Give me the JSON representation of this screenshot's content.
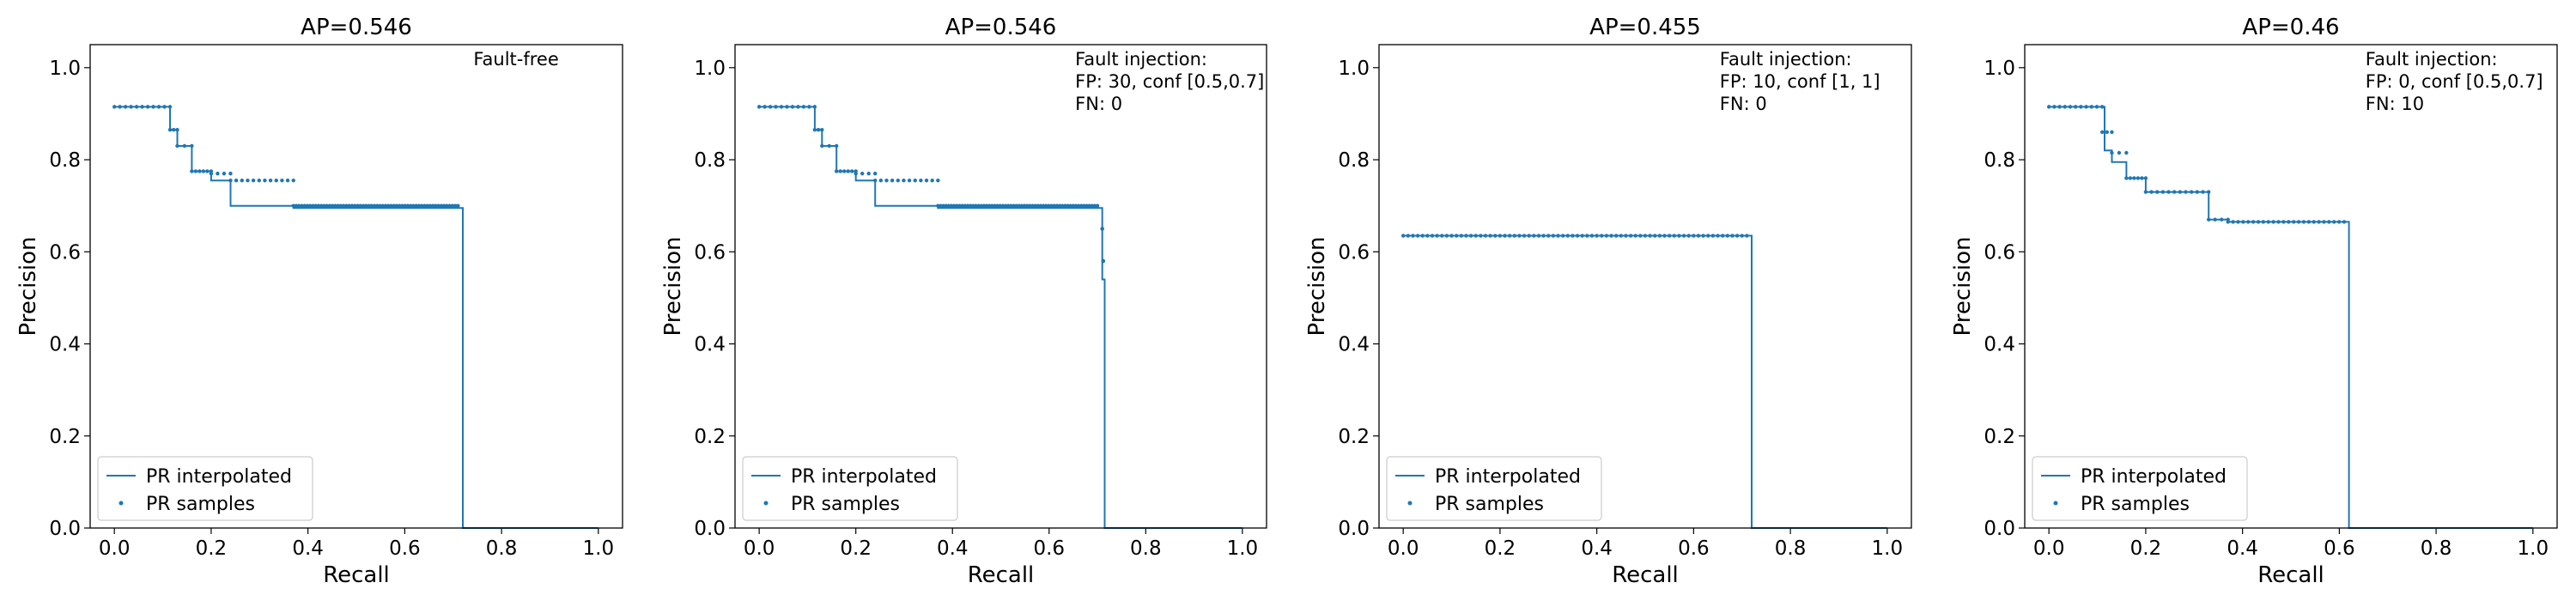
{
  "colors": {
    "series": "#1f77b4",
    "axes": "#000000",
    "legend_border": "#cccccc"
  },
  "chart_data": [
    {
      "type": "line",
      "title": "AP=0.546",
      "xlabel": "Recall",
      "ylabel": "Precision",
      "xlim": [
        -0.05,
        1.05
      ],
      "ylim": [
        0,
        1.05
      ],
      "xticks": [
        "0.0",
        "0.2",
        "0.4",
        "0.6",
        "0.8",
        "1.0"
      ],
      "yticks": [
        "0.0",
        "0.2",
        "0.4",
        "0.6",
        "0.8",
        "1.0"
      ],
      "grid": false,
      "legend_position": "lower-left",
      "annotation": [
        "Fault-free"
      ],
      "series": [
        {
          "name": "PR interpolated",
          "kind": "line",
          "x": [
            0.0,
            0.115,
            0.115,
            0.13,
            0.13,
            0.16,
            0.16,
            0.2,
            0.2,
            0.24,
            0.24,
            0.37,
            0.37,
            0.72,
            0.72,
            1.0
          ],
          "y": [
            0.915,
            0.915,
            0.865,
            0.865,
            0.83,
            0.83,
            0.775,
            0.775,
            0.755,
            0.755,
            0.7,
            0.7,
            0.695,
            0.695,
            0.0,
            0.0
          ]
        },
        {
          "name": "PR samples",
          "kind": "scatter",
          "segments": [
            [
              0.0,
              0.115,
              0.915,
              11
            ],
            [
              0.115,
              0.13,
              0.865,
              3
            ],
            [
              0.13,
              0.16,
              0.83,
              3
            ],
            [
              0.16,
              0.2,
              0.775,
              6
            ],
            [
              0.2,
              0.24,
              0.77,
              4
            ],
            [
              0.24,
              0.37,
              0.755,
              12
            ],
            [
              0.37,
              0.71,
              0.7,
              60
            ]
          ]
        }
      ]
    },
    {
      "type": "line",
      "title": "AP=0.546",
      "xlabel": "Recall",
      "ylabel": "Precision",
      "xlim": [
        -0.05,
        1.05
      ],
      "ylim": [
        0,
        1.05
      ],
      "xticks": [
        "0.0",
        "0.2",
        "0.4",
        "0.6",
        "0.8",
        "1.0"
      ],
      "yticks": [
        "0.0",
        "0.2",
        "0.4",
        "0.6",
        "0.8",
        "1.0"
      ],
      "grid": false,
      "legend_position": "lower-left",
      "annotation": [
        "Fault injection:",
        "FP: 30, conf [0.5,0.7]",
        "FN: 0"
      ],
      "series": [
        {
          "name": "PR interpolated",
          "kind": "line",
          "x": [
            0.0,
            0.115,
            0.115,
            0.13,
            0.13,
            0.16,
            0.16,
            0.2,
            0.2,
            0.24,
            0.24,
            0.37,
            0.37,
            0.71,
            0.71,
            0.715,
            0.715,
            1.0
          ],
          "y": [
            0.915,
            0.915,
            0.865,
            0.865,
            0.83,
            0.83,
            0.775,
            0.775,
            0.755,
            0.755,
            0.7,
            0.7,
            0.695,
            0.695,
            0.54,
            0.54,
            0.0,
            0.0
          ]
        },
        {
          "name": "PR samples",
          "kind": "scatter",
          "segments": [
            [
              0.0,
              0.115,
              0.915,
              11
            ],
            [
              0.115,
              0.13,
              0.865,
              3
            ],
            [
              0.13,
              0.16,
              0.83,
              3
            ],
            [
              0.16,
              0.2,
              0.775,
              6
            ],
            [
              0.2,
              0.24,
              0.77,
              4
            ],
            [
              0.24,
              0.37,
              0.755,
              12
            ],
            [
              0.37,
              0.7,
              0.7,
              60
            ],
            [
              0.71,
              0.71,
              0.65,
              3
            ],
            [
              0.712,
              0.712,
              0.58,
              3
            ]
          ]
        }
      ]
    },
    {
      "type": "line",
      "title": "AP=0.455",
      "xlabel": "Recall",
      "ylabel": "Precision",
      "xlim": [
        -0.05,
        1.05
      ],
      "ylim": [
        0,
        1.05
      ],
      "xticks": [
        "0.0",
        "0.2",
        "0.4",
        "0.6",
        "0.8",
        "1.0"
      ],
      "yticks": [
        "0.0",
        "0.2",
        "0.4",
        "0.6",
        "0.8",
        "1.0"
      ],
      "grid": false,
      "legend_position": "lower-left",
      "annotation": [
        "Fault injection:",
        "FP: 10, conf [1, 1]",
        "FN: 0"
      ],
      "series": [
        {
          "name": "PR interpolated",
          "kind": "line",
          "x": [
            0.0,
            0.72,
            0.72,
            1.0
          ],
          "y": [
            0.635,
            0.635,
            0.0,
            0.0
          ]
        },
        {
          "name": "PR samples",
          "kind": "scatter",
          "segments": [
            [
              0.0,
              0.71,
              0.635,
              72
            ]
          ]
        }
      ]
    },
    {
      "type": "line",
      "title": "AP=0.46",
      "xlabel": "Recall",
      "ylabel": "Precision",
      "xlim": [
        -0.05,
        1.05
      ],
      "ylim": [
        0,
        1.05
      ],
      "xticks": [
        "0.0",
        "0.2",
        "0.4",
        "0.6",
        "0.8",
        "1.0"
      ],
      "yticks": [
        "0.0",
        "0.2",
        "0.4",
        "0.6",
        "0.8",
        "1.0"
      ],
      "grid": false,
      "legend_position": "lower-left",
      "annotation": [
        "Fault injection:",
        "FP: 0, conf [0.5,0.7]",
        "FN: 10"
      ],
      "series": [
        {
          "name": "PR interpolated",
          "kind": "line",
          "x": [
            0.0,
            0.115,
            0.115,
            0.13,
            0.13,
            0.16,
            0.16,
            0.2,
            0.2,
            0.33,
            0.33,
            0.37,
            0.37,
            0.62,
            0.62,
            1.0
          ],
          "y": [
            0.915,
            0.915,
            0.82,
            0.82,
            0.795,
            0.795,
            0.76,
            0.76,
            0.73,
            0.73,
            0.67,
            0.67,
            0.665,
            0.665,
            0.0,
            0.0
          ]
        },
        {
          "name": "PR samples",
          "kind": "scatter",
          "segments": [
            [
              0.0,
              0.11,
              0.915,
              11
            ],
            [
              0.11,
              0.13,
              0.86,
              3
            ],
            [
              0.13,
              0.16,
              0.815,
              3
            ],
            [
              0.16,
              0.2,
              0.76,
              6
            ],
            [
              0.2,
              0.33,
              0.73,
              12
            ],
            [
              0.33,
              0.37,
              0.67,
              4
            ],
            [
              0.37,
              0.61,
              0.665,
              24
            ]
          ]
        }
      ]
    }
  ]
}
